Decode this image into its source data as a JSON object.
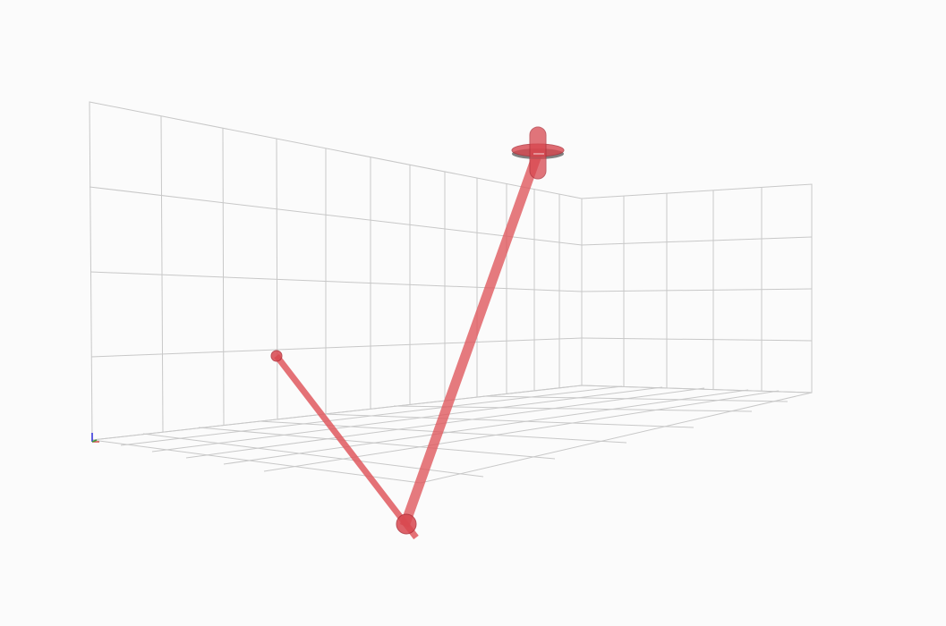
{
  "viewer": {
    "background": "#fbfbfb",
    "grid_color": "#c8c8c8",
    "grid_back_color": "#d2d2d2",
    "link_color": "#e05a5f",
    "joint_color": "#d8474f",
    "disc_color": "#6a6a6a",
    "axis_x_color": "#d0504a",
    "axis_y_color": "#3c9a3c",
    "axis_z_color": "#2a2ad8"
  },
  "scene": {
    "grid_left_wall": "left-wall",
    "grid_right_wall": "right-wall",
    "grid_floor": "floor",
    "links": [
      {
        "name": "upper-arm-link"
      },
      {
        "name": "lower-arm-link"
      }
    ],
    "joints": [
      {
        "name": "shoulder-joint"
      },
      {
        "name": "elbow-joint"
      },
      {
        "name": "end-effector"
      }
    ]
  }
}
